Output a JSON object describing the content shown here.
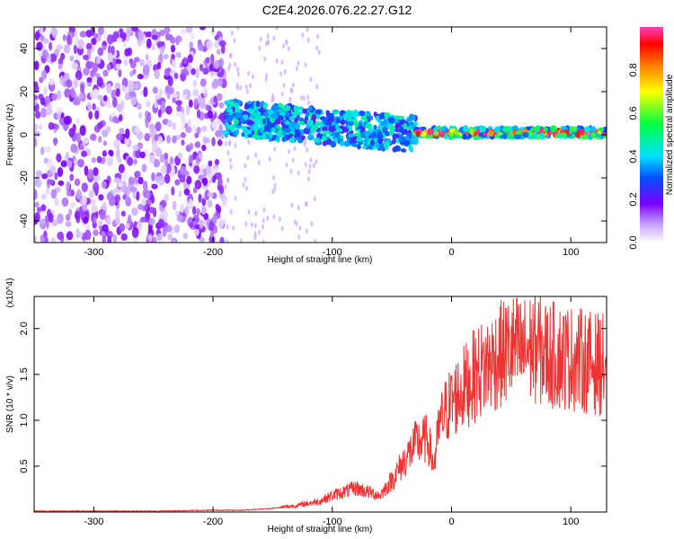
{
  "title": "C2E4.2026.076.22.27.G12",
  "chart_data": [
    {
      "type": "heatmap",
      "xlabel": "Height of straight line (km)",
      "ylabel": "Frequency (Hz)",
      "xlim": [
        -350,
        130
      ],
      "ylim": [
        -50,
        50
      ],
      "xticks": [
        -300,
        -200,
        -100,
        0,
        100
      ],
      "yticks": [
        -40,
        -20,
        0,
        20,
        40
      ],
      "grid": false,
      "colorbar": {
        "label": "Normalized spectral amplitude",
        "range": [
          0,
          1
        ],
        "ticks": [
          0.0,
          0.2,
          0.4,
          0.6,
          0.8
        ]
      },
      "features": [
        {
          "region_x": [
            -350,
            -190
          ],
          "freq_span": [
            -50,
            50
          ],
          "amplitude": 0.08
        },
        {
          "region_x": [
            -190,
            -30
          ],
          "freq_center": [
            8,
            0
          ],
          "freq_width": 8,
          "amplitude": 0.35
        },
        {
          "region_x": [
            -30,
            130
          ],
          "freq_center": [
            1,
            1
          ],
          "freq_width": 2,
          "amplitude": 0.85
        }
      ]
    },
    {
      "type": "line",
      "xlabel": "Height of straight line (km)",
      "ylabel": "SNR (10 * v/v)",
      "y_scale_note": "(x10^4)",
      "xlim": [
        -350,
        130
      ],
      "ylim": [
        0,
        2.35
      ],
      "xticks": [
        -300,
        -200,
        -100,
        0,
        100
      ],
      "yticks": [
        0.5,
        1.0,
        1.5,
        2.0
      ],
      "grid": false,
      "series": [
        {
          "color": "#ee3333",
          "x": [
            -350,
            -300,
            -250,
            -200,
            -175,
            -150,
            -130,
            -110,
            -100,
            -90,
            -80,
            -70,
            -60,
            -50,
            -40,
            -30,
            -20,
            -15,
            -10,
            -5,
            0,
            10,
            20,
            30,
            40,
            50,
            60,
            70,
            80,
            90,
            100,
            110,
            120,
            130
          ],
          "values": [
            0.01,
            0.01,
            0.01,
            0.02,
            0.02,
            0.04,
            0.07,
            0.12,
            0.18,
            0.22,
            0.26,
            0.22,
            0.18,
            0.35,
            0.55,
            0.75,
            0.8,
            0.5,
            0.95,
            1.1,
            1.2,
            1.35,
            1.5,
            1.6,
            1.7,
            1.78,
            1.75,
            1.8,
            1.72,
            1.7,
            1.68,
            1.65,
            1.62,
            1.6
          ]
        }
      ]
    }
  ]
}
